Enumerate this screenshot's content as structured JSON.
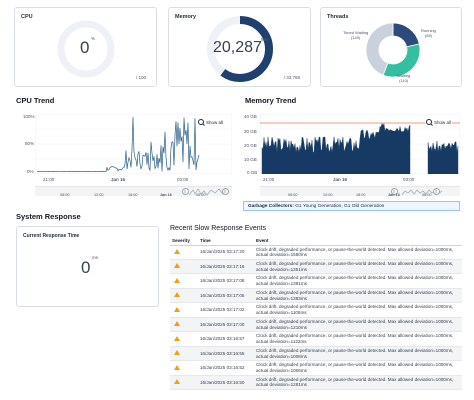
{
  "cpu": {
    "title": "CPU",
    "value": "0",
    "unit": "%",
    "max": "/ 100",
    "fraction": 0
  },
  "memory": {
    "title": "Memory",
    "value": "20,287",
    "unit": "MB",
    "max": "/ 33,768",
    "fraction": 0.6
  },
  "threads": {
    "title": "Threads",
    "segments": [
      {
        "label": "Running",
        "count": "(68)",
        "color": "#2d4a7a",
        "value": 68
      },
      {
        "label": "Waiting",
        "count": "(110)",
        "color": "#34c0a0",
        "value": 110
      },
      {
        "label": "Timed Waiting",
        "count": "(140)",
        "color": "#c9d2dc",
        "value": 140
      }
    ]
  },
  "cpu_trend": {
    "title": "CPU Trend",
    "show_all": "Show all",
    "yticks": [
      "100%",
      "50%",
      "0%"
    ],
    "xticks": [
      "21:00",
      "Jan 16",
      "03:00"
    ],
    "nav_ticks": [
      "06:00",
      "12:00",
      "18:00",
      "Jan 16",
      "06:00"
    ]
  },
  "memory_trend": {
    "title": "Memory Trend",
    "show_all": "Show all",
    "yticks": [
      "40 GB",
      "30 GB",
      "20 GB",
      "10 GB",
      "0 GB"
    ],
    "xticks": [
      "21:00",
      "Jan 16",
      "03:00"
    ],
    "nav_ticks": [
      "06:00",
      "12:00",
      "18:00",
      "Jan 16",
      "06:00"
    ]
  },
  "gc": {
    "label": "Garbage Collectors:",
    "value": "G1 Young Generation, G1 Old Generation"
  },
  "system_response": {
    "title": "System Response"
  },
  "current_response": {
    "title": "Current Response Time",
    "value": "0",
    "unit": "ms"
  },
  "events": {
    "title": "Recent Slow Response Events",
    "columns": [
      "Severity",
      "Time",
      "Event"
    ],
    "rows": [
      {
        "time": "16/Jan/2025 03:17:20",
        "event": "Clock drift, degraded performance, or pause-the-world detected. Max allowed deviation=1000ms, actual deviation=1580ms"
      },
      {
        "time": "16/Jan/2025 03:17:16",
        "event": "Clock drift, degraded performance, or pause-the-world detected. Max allowed deviation=1000ms, actual deviation=1351ms"
      },
      {
        "time": "16/Jan/2025 03:17:08",
        "event": "Clock drift, degraded performance, or pause-the-world detected. Max allowed deviation=1000ms, actual deviation=1381ms"
      },
      {
        "time": "16/Jan/2025 03:17:05",
        "event": "Clock drift, degraded performance, or pause-the-world detected. Max allowed deviation=1000ms, actual deviation=1383ms"
      },
      {
        "time": "16/Jan/2025 03:17:02",
        "event": "Clock drift, degraded performance, or pause-the-world detected. Max allowed deviation=1000ms, actual deviation=1105ms"
      },
      {
        "time": "16/Jan/2025 03:17:00",
        "event": "Clock drift, degraded performance, or pause-the-world detected. Max allowed deviation=1000ms, actual deviation=1210ms"
      },
      {
        "time": "16/Jan/2025 03:16:57",
        "event": "Clock drift, degraded performance, or pause-the-world detected. Max allowed deviation=1000ms, actual deviation=1122ms"
      },
      {
        "time": "16/Jan/2025 03:16:55",
        "event": "Clock drift, degraded performance, or pause-the-world detected. Max allowed deviation=1000ms, actual deviation=1008ms"
      },
      {
        "time": "16/Jan/2025 03:16:52",
        "event": "Clock drift, degraded performance, or pause-the-world detected. Max allowed deviation=1000ms, actual deviation=1006ms"
      },
      {
        "time": "16/Jan/2025 03:16:50",
        "event": "Clock drift, degraded performance, or pause-the-world detected. Max allowed deviation=1000ms, actual deviation=1281ms"
      }
    ]
  }
}
